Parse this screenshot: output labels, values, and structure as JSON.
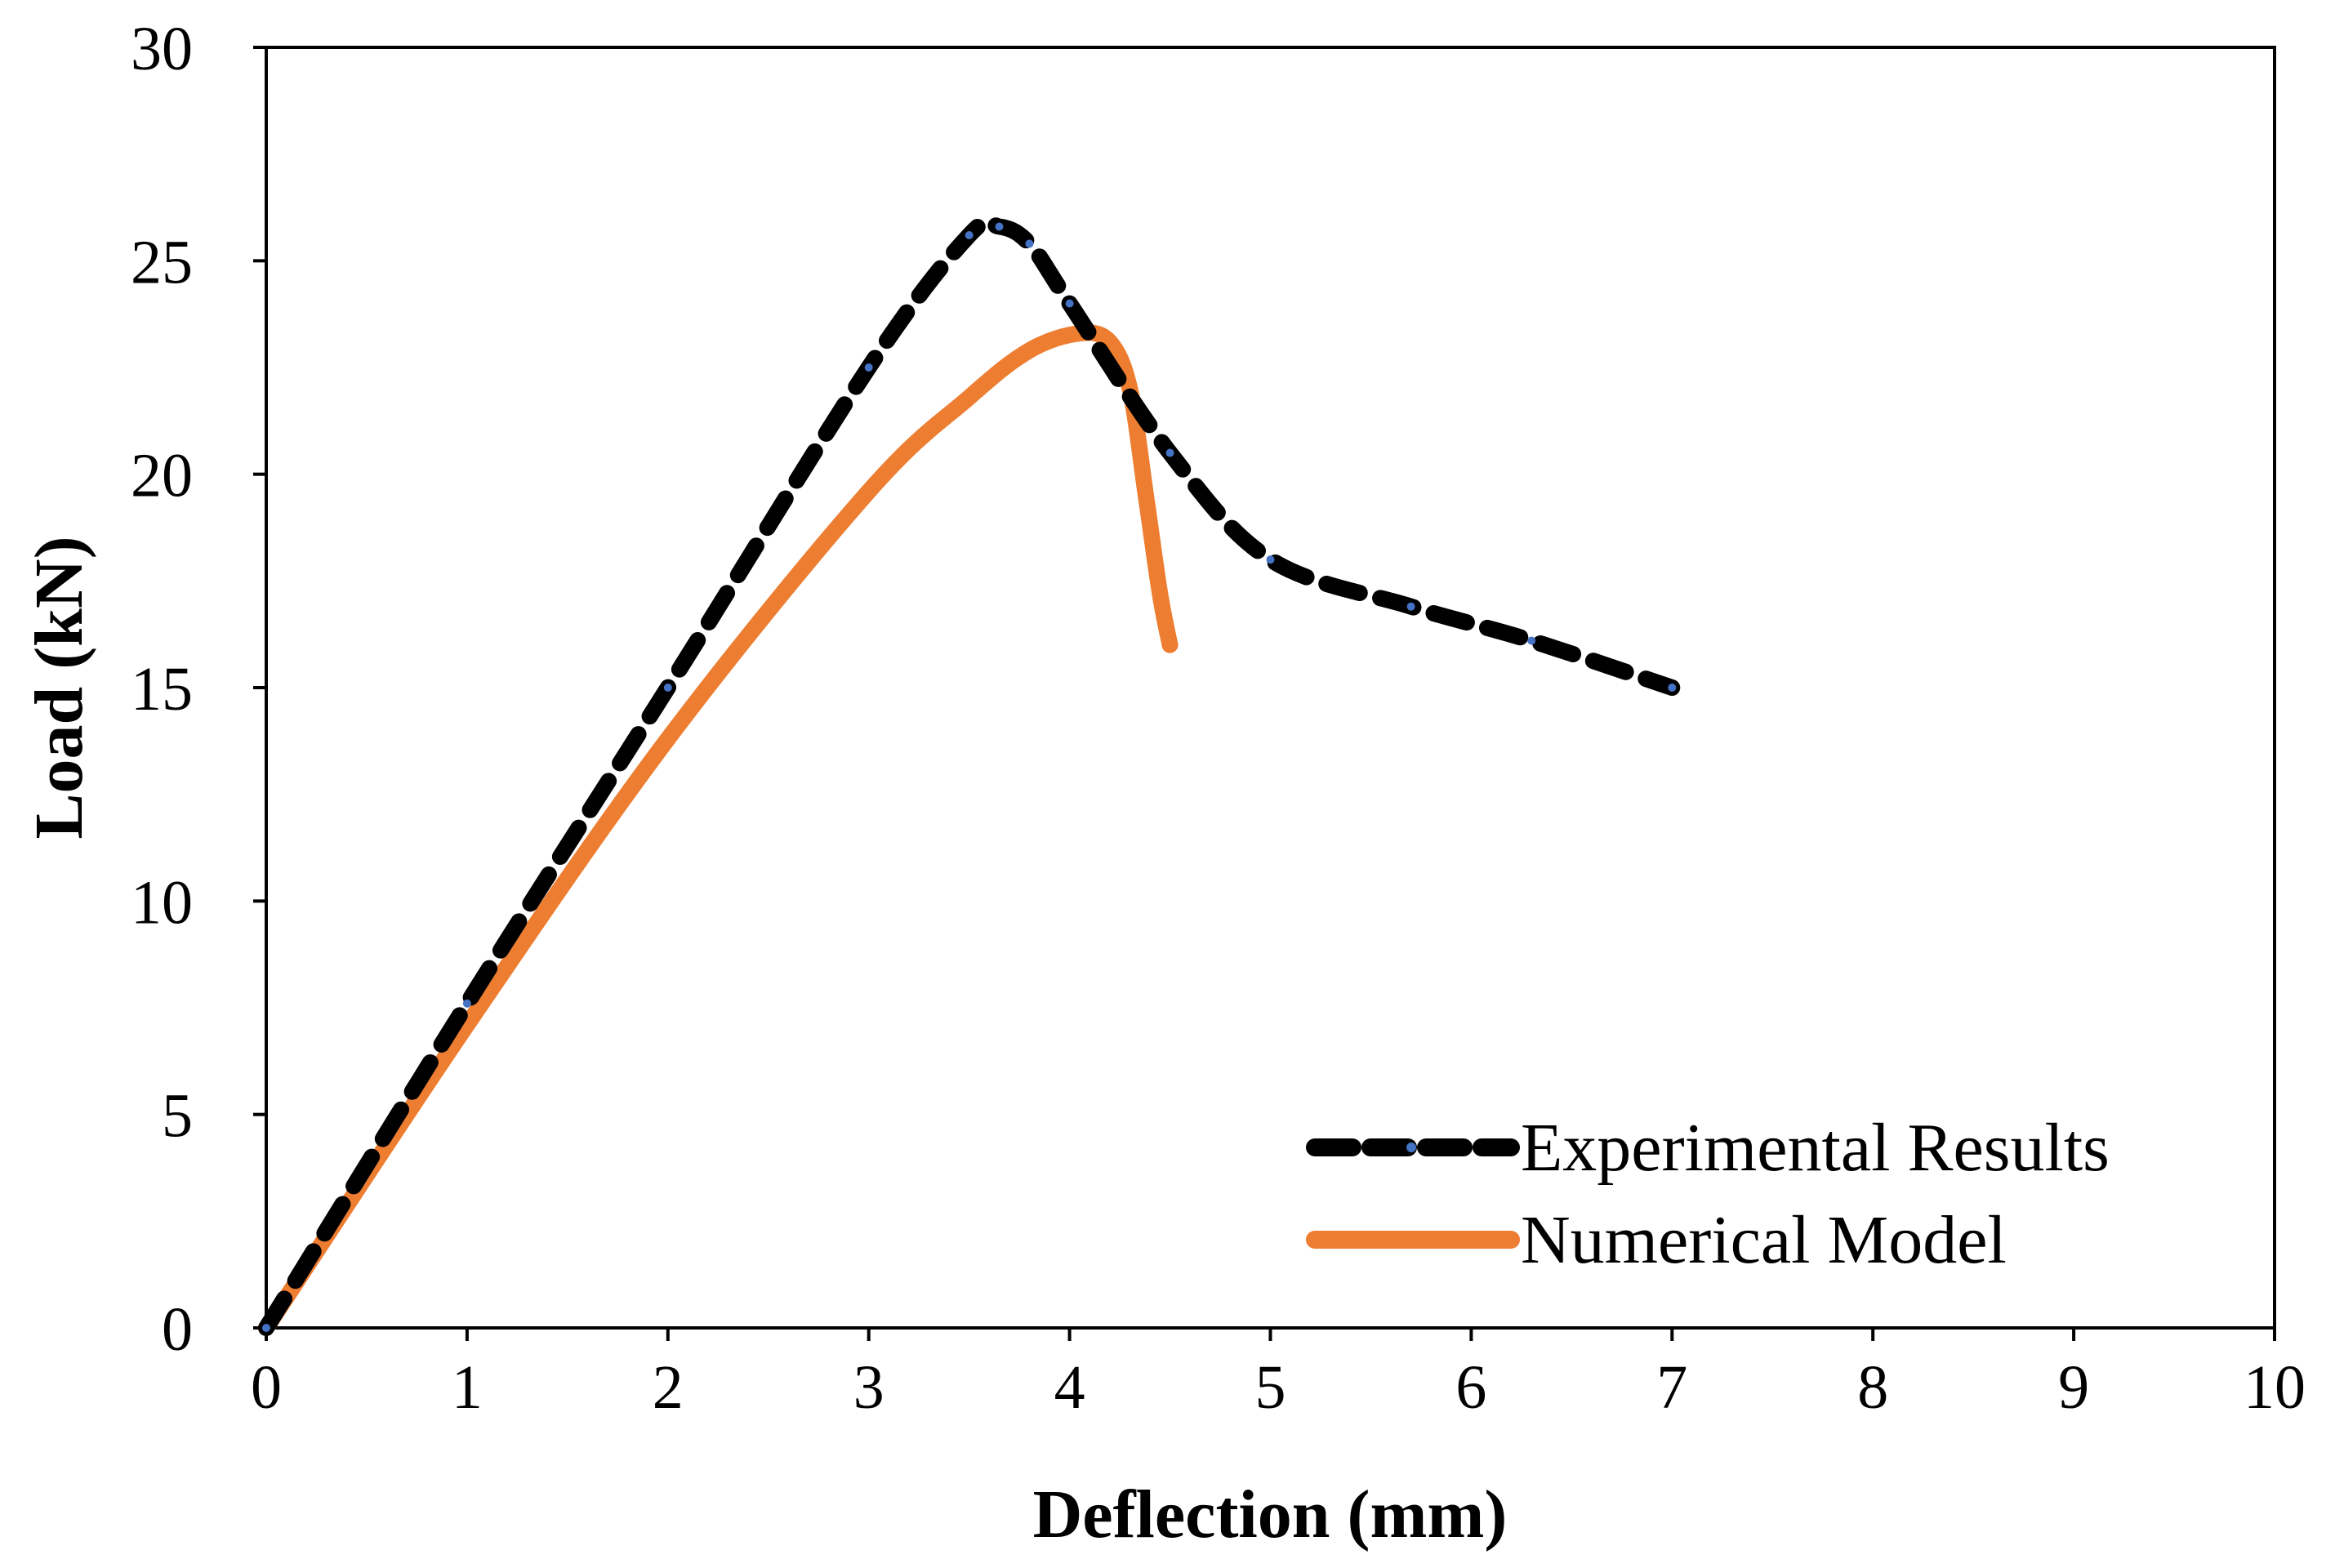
{
  "chart_data": {
    "type": "line",
    "title": "",
    "xlabel": "Deflection (mm)",
    "ylabel": "Load (kN)",
    "xlim": [
      0,
      10
    ],
    "ylim": [
      0,
      30
    ],
    "xticks": [
      "0",
      "1",
      "2",
      "3",
      "4",
      "5",
      "6",
      "7",
      "8",
      "9",
      "10"
    ],
    "yticks": [
      "0",
      "5",
      "10",
      "15",
      "20",
      "25",
      "30"
    ],
    "grid": false,
    "legend_position": "bottom-right",
    "series": [
      {
        "name": "Experimental Results",
        "style": "dashed",
        "color": "#000000",
        "marker_color": "#4472C4",
        "points": [
          {
            "x": 0,
            "y": 0
          },
          {
            "x": 1,
            "y": 7.6
          },
          {
            "x": 2,
            "y": 15
          },
          {
            "x": 3,
            "y": 22.5
          },
          {
            "x": 3.5,
            "y": 25.6
          },
          {
            "x": 3.65,
            "y": 25.8
          },
          {
            "x": 3.8,
            "y": 25.4
          },
          {
            "x": 4,
            "y": 24
          },
          {
            "x": 4.5,
            "y": 20.5
          },
          {
            "x": 5,
            "y": 18
          },
          {
            "x": 5.7,
            "y": 16.9
          },
          {
            "x": 6.3,
            "y": 16.1
          },
          {
            "x": 7,
            "y": 15
          }
        ]
      },
      {
        "name": "Numerical Model",
        "style": "solid",
        "color": "#ED7D31",
        "points": [
          {
            "x": 0,
            "y": 0
          },
          {
            "x": 1,
            "y": 7.1
          },
          {
            "x": 2,
            "y": 13.8
          },
          {
            "x": 3,
            "y": 19.6
          },
          {
            "x": 3.5,
            "y": 21.8
          },
          {
            "x": 3.8,
            "y": 22.9
          },
          {
            "x": 4.05,
            "y": 23.3
          },
          {
            "x": 4.2,
            "y": 23.1
          },
          {
            "x": 4.3,
            "y": 22
          },
          {
            "x": 4.38,
            "y": 19.5
          },
          {
            "x": 4.45,
            "y": 17.2
          },
          {
            "x": 4.5,
            "y": 16
          }
        ]
      }
    ]
  }
}
